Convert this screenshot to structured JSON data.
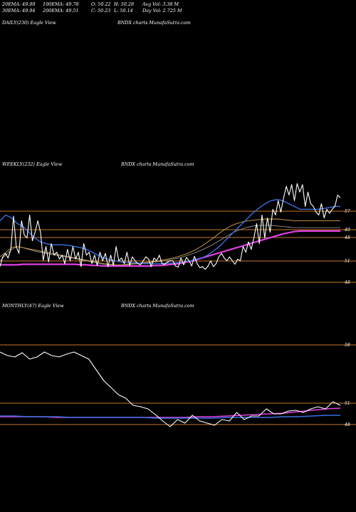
{
  "header": {
    "stats": [
      [
        "20EMA: 49.99",
        "100EMA: 49.78",
        "O: 50.22",
        "H: 50.28",
        "Avg Vol: 3.38  M"
      ],
      [
        "30EMA: 49.94",
        "200EMA: 49.51",
        "C: 50.23",
        "L: 50.14",
        "Day Vol: 2.725 M"
      ]
    ]
  },
  "colors": {
    "background": "#000000",
    "price": "#ffffff",
    "ema_blue": "#3a6fe0",
    "ema_magenta": "#e040e0",
    "reference_line": "#c8782a",
    "ema_gold": "#d2a24a",
    "ema_gray": "#a0a0a0"
  },
  "chart_data": [
    {
      "type": "line",
      "timeframe": "DAILY",
      "label_left": "DAILY(230) Eagle  View",
      "label_center": "BNDX  charts MunafaSutra.com",
      "series": [],
      "reference_ticks": [],
      "grid": false
    },
    {
      "type": "line",
      "timeframe": "WEEKLY",
      "label_left": "WEEKLY(232) Eagle  View",
      "label_center": "BNDX  charts MunafaSutra.com",
      "upper_ticks": [
        "57",
        "49",
        "48"
      ],
      "lower_ticks": [
        "51",
        "48"
      ],
      "price": [
        48.5,
        50.2,
        50.8,
        50.0,
        51.5,
        57.3,
        52.0,
        50.8,
        56.5,
        54.0,
        53.5,
        57.5,
        53.0,
        54.5,
        56.5,
        54.5,
        49.6,
        52.0,
        49.3,
        52.5,
        50.5,
        51.0,
        49.8,
        50.5,
        49.0,
        51.5,
        49.5,
        52.0,
        49.8,
        51.0,
        48.5,
        52.5,
        50.5,
        51.0,
        49.0,
        50.5,
        48.7,
        51.0,
        49.5,
        50.8,
        48.5,
        50.5,
        48.7,
        52.0,
        49.5,
        50.0,
        49.0,
        51.0,
        48.7,
        50.2,
        49.5,
        49.0,
        48.8,
        49.5,
        50.2,
        49.8,
        48.5,
        50.0,
        49.5,
        50.5,
        49.0,
        48.9,
        49.3,
        49.5,
        49.5,
        48.6,
        48.4,
        50.0,
        48.8,
        50.1,
        49.5,
        48.6,
        50.3,
        49.0,
        48.3,
        48.5,
        48.0,
        48.6,
        49.5,
        48.5,
        49.0,
        50.2,
        50.8,
        50.0,
        49.5,
        50.2,
        49.5,
        48.9,
        49.8,
        49.5,
        52.0,
        51.0,
        52.8,
        51.5,
        53.5,
        56.0,
        52.5,
        57.5,
        53.5,
        57.0,
        54.5,
        58.5,
        57.5,
        60.0,
        58.0,
        60.5,
        62.5,
        61.0,
        62.8,
        60.0,
        63.0,
        61.5,
        62.8,
        59.0,
        61.5,
        59.5,
        59.0,
        58.0,
        57.5,
        59.5,
        57.0,
        58.5,
        57.8,
        58.5,
        59.0,
        61.0,
        60.5
      ],
      "ema_blue": [
        56.5,
        57.5,
        57.0,
        56.0,
        55.5,
        54.5,
        53.5,
        52.8,
        52.5,
        52.3,
        52.3,
        52.3,
        52.2,
        52.0,
        51.8,
        51.5,
        51.0,
        50.5,
        50.0,
        49.7,
        49.5,
        49.3,
        49.2,
        49.2,
        49.1,
        49.0,
        49.0,
        49.0,
        49.0,
        49.1,
        49.1,
        49.2,
        49.3,
        49.5,
        49.8,
        50.0,
        50.5,
        51.2,
        52.0,
        53.0,
        54.0,
        55.0,
        56.0,
        57.0,
        58.0,
        58.8,
        59.5,
        60.0,
        60.2,
        60.0,
        59.5,
        59.0,
        58.5,
        58.5,
        58.5,
        58.5,
        58.6,
        58.8,
        59.0,
        59.0
      ],
      "ema_gold": [
        50.2,
        51.0,
        51.8,
        52.0,
        51.8,
        51.6,
        51.4,
        51.2,
        51.0,
        50.8,
        50.6,
        50.4,
        50.2,
        50.0,
        49.8,
        49.6,
        49.4,
        49.2,
        49.0,
        48.9,
        48.8,
        48.8,
        48.9,
        49.0,
        49.1,
        49.2,
        49.3,
        49.4,
        49.6,
        49.8,
        50.0,
        50.3,
        50.6,
        51.0,
        51.5,
        52.1,
        52.8,
        53.5,
        54.3,
        55.0,
        55.6,
        56.0,
        56.3,
        56.5,
        56.6,
        56.7,
        56.8,
        56.8,
        56.8,
        56.7,
        56.6,
        56.5,
        56.5,
        56.5,
        56.5,
        56.5,
        56.5,
        56.5,
        56.5,
        56.5
      ],
      "ema_gray": [
        49.5,
        50.5,
        51.5,
        52.0,
        51.8,
        51.5,
        51.2,
        51.0,
        50.8,
        50.6,
        50.4,
        50.3,
        50.1,
        49.9,
        49.7,
        49.5,
        49.3,
        49.1,
        48.9,
        48.8,
        48.7,
        48.7,
        48.8,
        48.9,
        49.0,
        49.1,
        49.2,
        49.3,
        49.4,
        49.6,
        49.8,
        50.0,
        50.3,
        50.6,
        51.0,
        51.4,
        51.9,
        52.4,
        53.0,
        53.6,
        54.2,
        54.7,
        55.1,
        55.4,
        55.6,
        55.7,
        55.7,
        55.7,
        55.6,
        55.5,
        55.4,
        55.3,
        55.3,
        55.3,
        55.3,
        55.3,
        55.3,
        55.3,
        55.3,
        55.3
      ],
      "ema_magenta": [
        48.8,
        48.8,
        48.8,
        48.8,
        48.9,
        48.9,
        48.9,
        48.9,
        48.9,
        48.9,
        48.9,
        48.9,
        48.9,
        48.9,
        48.8,
        48.8,
        48.7,
        48.7,
        48.6,
        48.6,
        48.6,
        48.6,
        48.6,
        48.6,
        48.6,
        48.6,
        48.6,
        48.7,
        48.7,
        48.8,
        48.9,
        49.0,
        49.2,
        49.4,
        49.7,
        50.0,
        50.3,
        50.6,
        50.9,
        51.2,
        51.5,
        51.8,
        52.1,
        52.4,
        52.7,
        53.0,
        53.3,
        53.6,
        53.9,
        54.2,
        54.4,
        54.6,
        54.7,
        54.7,
        54.7,
        54.7,
        54.7,
        54.7,
        54.7,
        54.7
      ],
      "grid": false
    },
    {
      "type": "line",
      "timeframe": "MONTHLY",
      "label_left": "MONTHLY(47) Eagle  View",
      "label_center": "BNDX  charts MunafaSutra.com",
      "upper_ticks": [
        "58"
      ],
      "lower_ticks": [
        "51",
        "48"
      ],
      "price": [
        57.5,
        57.0,
        56.8,
        57.4,
        56.5,
        56.8,
        57.5,
        57.0,
        56.8,
        57.2,
        57.5,
        57.0,
        56.5,
        55.0,
        53.5,
        52.5,
        51.5,
        51.0,
        50.0,
        49.8,
        49.5,
        48.7,
        47.8,
        47.0,
        48.0,
        47.5,
        48.6,
        47.8,
        47.5,
        47.2,
        48.0,
        47.8,
        49.0,
        48.0,
        48.5,
        48.5,
        49.5,
        48.8,
        48.8,
        49.2,
        49.3,
        49.0,
        49.5,
        49.8,
        49.5,
        50.5,
        50.0
      ],
      "ema_blue": [
        48.5,
        48.5,
        48.4,
        48.4,
        48.4,
        48.3,
        48.3,
        48.3,
        48.3,
        48.3,
        48.3,
        48.2,
        48.2,
        48.2,
        48.2,
        48.2,
        48.3,
        48.3,
        48.3,
        48.3,
        48.4,
        48.4,
        48.5,
        48.6,
        48.6
      ],
      "ema_magenta": [
        48.4,
        48.4,
        48.4,
        48.4,
        48.3,
        48.3,
        48.3,
        48.3,
        48.3,
        48.3,
        48.3,
        48.3,
        48.3,
        48.3,
        48.4,
        48.4,
        48.5,
        48.6,
        48.7,
        48.8,
        48.9,
        49.1,
        49.3,
        49.5,
        49.6
      ],
      "grid": false
    }
  ]
}
